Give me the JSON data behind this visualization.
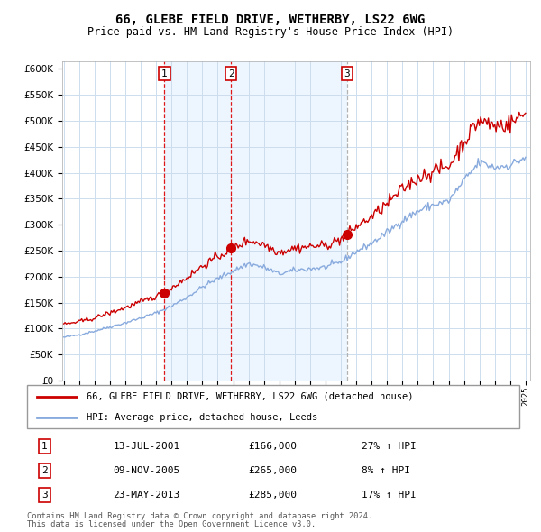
{
  "title": "66, GLEBE FIELD DRIVE, WETHERBY, LS22 6WG",
  "subtitle": "Price paid vs. HM Land Registry's House Price Index (HPI)",
  "property_label": "66, GLEBE FIELD DRIVE, WETHERBY, LS22 6WG (detached house)",
  "hpi_label": "HPI: Average price, detached house, Leeds",
  "footer1": "Contains HM Land Registry data © Crown copyright and database right 2024.",
  "footer2": "This data is licensed under the Open Government Licence v3.0.",
  "sales": [
    {
      "number": 1,
      "date": "13-JUL-2001",
      "price": 166000,
      "pct": "27%",
      "x_year": 2001.54
    },
    {
      "number": 2,
      "date": "09-NOV-2005",
      "price": 265000,
      "pct": "8%",
      "x_year": 2005.86
    },
    {
      "number": 3,
      "date": "23-MAY-2013",
      "price": 285000,
      "pct": "17%",
      "x_year": 2013.39
    }
  ],
  "annual_hpi": {
    "years": [
      1995,
      1996,
      1997,
      1998,
      1999,
      2000,
      2001,
      2002,
      2003,
      2004,
      2005,
      2006,
      2007,
      2008,
      2009,
      2010,
      2011,
      2012,
      2013,
      2014,
      2015,
      2016,
      2017,
      2018,
      2019,
      2020,
      2021,
      2022,
      2023,
      2024,
      2025
    ],
    "values": [
      83000,
      88000,
      95000,
      103000,
      111000,
      120000,
      130000,
      143000,
      160000,
      180000,
      196000,
      211000,
      225000,
      218000,
      205000,
      212000,
      215000,
      218000,
      228000,
      248000,
      264000,
      285000,
      308000,
      326000,
      338000,
      345000,
      385000,
      420000,
      410000,
      415000,
      430000
    ]
  },
  "annual_prop": {
    "years": [
      1995,
      1996,
      1997,
      1998,
      1999,
      2000,
      2001,
      2002,
      2003,
      2004,
      2005,
      2006,
      2007,
      2008,
      2009,
      2010,
      2011,
      2012,
      2013,
      2014,
      2015,
      2016,
      2017,
      2018,
      2019,
      2020,
      2021,
      2022,
      2023,
      2024,
      2025
    ],
    "values": [
      108000,
      113000,
      120000,
      130000,
      140000,
      151000,
      162000,
      178000,
      198000,
      220000,
      238000,
      255000,
      270000,
      262000,
      247000,
      255000,
      258000,
      260000,
      272000,
      296000,
      315000,
      340000,
      368000,
      390000,
      403000,
      412000,
      460000,
      502000,
      490000,
      495000,
      515000
    ]
  },
  "ylabel_ticks": [
    0,
    50000,
    100000,
    150000,
    200000,
    250000,
    300000,
    350000,
    400000,
    450000,
    500000,
    550000,
    600000
  ],
  "ylim": [
    0,
    615000
  ],
  "xlim_start": 1995.0,
  "xlim_end": 2025.3,
  "vline_color": "#dd0000",
  "prop_line_color": "#cc0000",
  "hpi_line_color": "#88aadd",
  "background_color": "#ffffff",
  "grid_color": "#ccddee",
  "sale_box_color": "#cc0000",
  "shade_color": "#ddeeff"
}
